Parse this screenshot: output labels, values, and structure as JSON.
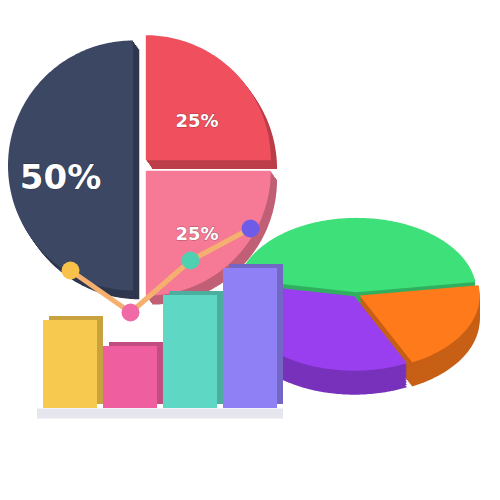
{
  "chart_data": [
    {
      "type": "pie",
      "values": [
        50,
        25,
        25
      ],
      "value_labels": [
        "50%",
        "25%",
        "25%"
      ],
      "colors": [
        "#3b4763",
        "#f0505e",
        "#f67a96"
      ],
      "data_labels": true
    },
    {
      "type": "pie",
      "values": [
        45,
        20,
        35
      ],
      "colors": [
        "#3ee07a",
        "#ff7a1a",
        "#9a3ff0"
      ],
      "data_labels": false
    },
    {
      "type": "bar",
      "categories": [
        null,
        null,
        null,
        null
      ],
      "values": [
        88,
        62,
        113,
        140
      ],
      "colors": [
        "#f7c94e",
        "#ef5fa0",
        "#5ed8c4",
        "#8f80f5"
      ],
      "ylim": [
        0,
        200
      ],
      "tick_labels": false
    },
    {
      "type": "line",
      "categories": [
        null,
        null,
        null,
        null
      ],
      "values": [
        138,
        96,
        148,
        180
      ],
      "colors": [
        "#f8c24a",
        "#f06aa8",
        "#4fd0b0",
        "#6e5ce8"
      ],
      "color": "#f5b070",
      "marker": "circle",
      "ylim": [
        0,
        200
      ],
      "tick_labels": false
    }
  ]
}
